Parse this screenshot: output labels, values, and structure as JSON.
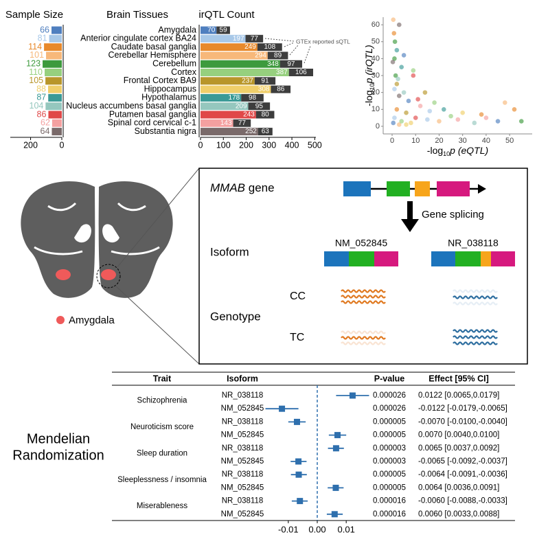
{
  "chart_data": [
    {
      "type": "hbar_reversed",
      "title": "Sample Size",
      "values": [
        66,
        81,
        114,
        101,
        123,
        110,
        105,
        88,
        87,
        104,
        86,
        62,
        64
      ],
      "colors": [
        "#4f7fbf",
        "#a8c8e8",
        "#e8892b",
        "#f7b87a",
        "#3d9a3d",
        "#96d07e",
        "#b8962a",
        "#f0cf6a",
        "#3a9a96",
        "#95c7be",
        "#e04848",
        "#f4a0a0",
        "#7a6a6a"
      ],
      "xlim": [
        0,
        330
      ],
      "xticks": [
        200,
        0
      ]
    },
    {
      "type": "stacked_hbar",
      "title": "irQTL Count",
      "category_title": "Brain Tissues",
      "categories": [
        "Amygdala",
        "Anterior cingulate cortex BA24",
        "Caudate basal ganglia",
        "Cerebellar Hemisphere",
        "Cerebellum",
        "Cortex",
        "Frontal Cortex BA9",
        "Hippocampus",
        "Hypothalamus",
        "Nucleus accumbens basal ganglia",
        "Putamen basal ganglia",
        "Spinal cord cervical c-1",
        "Substantia nigra"
      ],
      "series": [
        {
          "colors": [
            "#4f7fbf",
            "#a8c8e8",
            "#e8892b",
            "#f7b87a",
            "#3d9a3d",
            "#96d07e",
            "#b8962a",
            "#f0cf6a",
            "#3a9a96",
            "#95c7be",
            "#e04848",
            "#f4a0a0",
            "#7a6a6a"
          ],
          "values": [
            70,
            197,
            249,
            294,
            348,
            387,
            237,
            308,
            178,
            209,
            243,
            143,
            252
          ]
        },
        {
          "color": "#3d3d3d",
          "values": [
            59,
            77,
            108,
            89,
            97,
            106,
            91,
            86,
            98,
            95,
            80,
            77,
            63
          ]
        }
      ],
      "annotation": "GTEx reported sQTL",
      "xlim": [
        0,
        505
      ],
      "xticks": [
        0,
        100,
        200,
        300,
        400,
        500
      ]
    },
    {
      "type": "scatter",
      "xlabel": {
        "pre": "-log",
        "sub": "10",
        "post": "p (eQTL)"
      },
      "ylabel": {
        "pre": "-log",
        "sub": "10",
        "post": "p (irQTL)"
      },
      "x": [
        0.5,
        1,
        2,
        3,
        1.5,
        4,
        6,
        8,
        2,
        5,
        10,
        12,
        3,
        7,
        15,
        0.8,
        20,
        1,
        25,
        2,
        30,
        4,
        35,
        9,
        40,
        3,
        45,
        1,
        52,
        0.5,
        1.2,
        18,
        14,
        6,
        22,
        2.5,
        11,
        28,
        0.3,
        5,
        16,
        38,
        48,
        55,
        9
      ],
      "y": [
        2,
        5,
        10,
        1,
        30,
        3,
        8,
        2,
        45,
        20,
        5,
        12,
        60,
        15,
        4,
        55,
        3,
        40,
        6,
        25,
        8,
        35,
        2,
        30,
        5,
        18,
        3,
        22,
        10,
        63,
        50,
        14,
        20,
        1,
        10,
        28,
        16,
        4,
        38,
        42,
        9,
        7,
        14,
        3,
        33
      ],
      "point_colors": [
        "#4f7fbf",
        "#a8c8e8",
        "#e8892b",
        "#f7b87a",
        "#3d9a3d",
        "#96d07e",
        "#b8962a",
        "#f0cf6a",
        "#3a9a96",
        "#95c7be",
        "#e04848",
        "#f4a0a0",
        "#7a6a6a",
        "#4f7fbf",
        "#a8c8e8",
        "#e8892b",
        "#f7b87a",
        "#3d9a3d",
        "#96d07e",
        "#b8962a",
        "#f0cf6a",
        "#3a9a96",
        "#95c7be",
        "#e04848",
        "#f4a0a0",
        "#7a6a6a",
        "#4f7fbf",
        "#a8c8e8",
        "#e8892b",
        "#f7b87a",
        "#3d9a3d",
        "#96d07e",
        "#b8962a",
        "#f0cf6a",
        "#3a9a96",
        "#95c7be",
        "#e04848",
        "#f4a0a0",
        "#7a6a6a",
        "#4f7fbf",
        "#a8c8e8",
        "#e8892b",
        "#f7b87a",
        "#3d9a3d",
        "#96d07e"
      ],
      "xlim": [
        -3.8,
        59.6
      ],
      "xticks": [
        0,
        10,
        20,
        30,
        40,
        50
      ],
      "ylim": [
        -4.5,
        64.5
      ],
      "yticks": [
        0,
        10,
        20,
        30,
        40,
        50,
        60
      ]
    },
    {
      "type": "forest",
      "color": "#2e6fad",
      "columns": [
        "Trait",
        "Isoform",
        "P-value",
        "Effect [95% CI]"
      ],
      "traits": [
        "Schizophrenia",
        "Neuroticism score",
        "Sleep duration",
        "Sleeplessness / insomnia",
        "Miserableness"
      ],
      "isoforms": [
        "NR_038118",
        "NM_052845",
        "NR_038118",
        "NM_052845",
        "NR_038118",
        "NM_052845",
        "NR_038118",
        "NM_052845",
        "NR_038118",
        "NM_052845"
      ],
      "p_values": [
        2.6e-05,
        2.6e-05,
        5e-06,
        5e-06,
        3e-06,
        3e-06,
        5e-06,
        5e-06,
        1.6e-05,
        1.6e-05
      ],
      "values": [
        0.0122,
        -0.0122,
        -0.007,
        0.007,
        0.0065,
        -0.0065,
        -0.0064,
        0.0064,
        -0.006,
        0.006
      ],
      "lower": [
        0.0065,
        -0.0179,
        -0.01,
        0.004,
        0.0037,
        -0.0092,
        -0.0091,
        0.0036,
        -0.0088,
        0.0033
      ],
      "upper": [
        0.0179,
        -0.0065,
        -0.004,
        0.01,
        0.0092,
        -0.0037,
        -0.0036,
        0.0091,
        -0.0033,
        0.0088
      ],
      "value_labels": [
        "0.0122 [0.0065,0.0179]",
        "-0.0122 [-0.0179,-0.0065]",
        "-0.0070 [-0.0100,-0.0040]",
        "0.0070 [0.0040,0.0100]",
        "0.0065 [0.0037,0.0092]",
        "-0.0065 [-0.0092,-0.0037]",
        "-0.0064 [-0.0091,-0.0036]",
        "0.0064 [0.0036,0.0091]",
        "-0.0060 [-0.0088,-0.0033]",
        "0.0060 [0.0033,0.0088]"
      ],
      "xlim": [
        -0.0185,
        0.0185
      ],
      "xticks": [
        -0.01,
        {
          "value": 0,
          "label": "0.00"
        },
        0.01
      ]
    }
  ],
  "brain": {
    "legend": "Amygdala"
  },
  "diagram": {
    "gene_name": "MMAB",
    "gene_word": "gene",
    "splicing": "Gene splicing",
    "isoform_label": "Isoform",
    "isoforms": [
      "NM_052845",
      "NR_038118"
    ],
    "genotype_label": "Genotype",
    "genotypes": [
      "CC",
      "TC"
    ]
  },
  "mr_label": [
    "Mendelian",
    "Randomization"
  ]
}
